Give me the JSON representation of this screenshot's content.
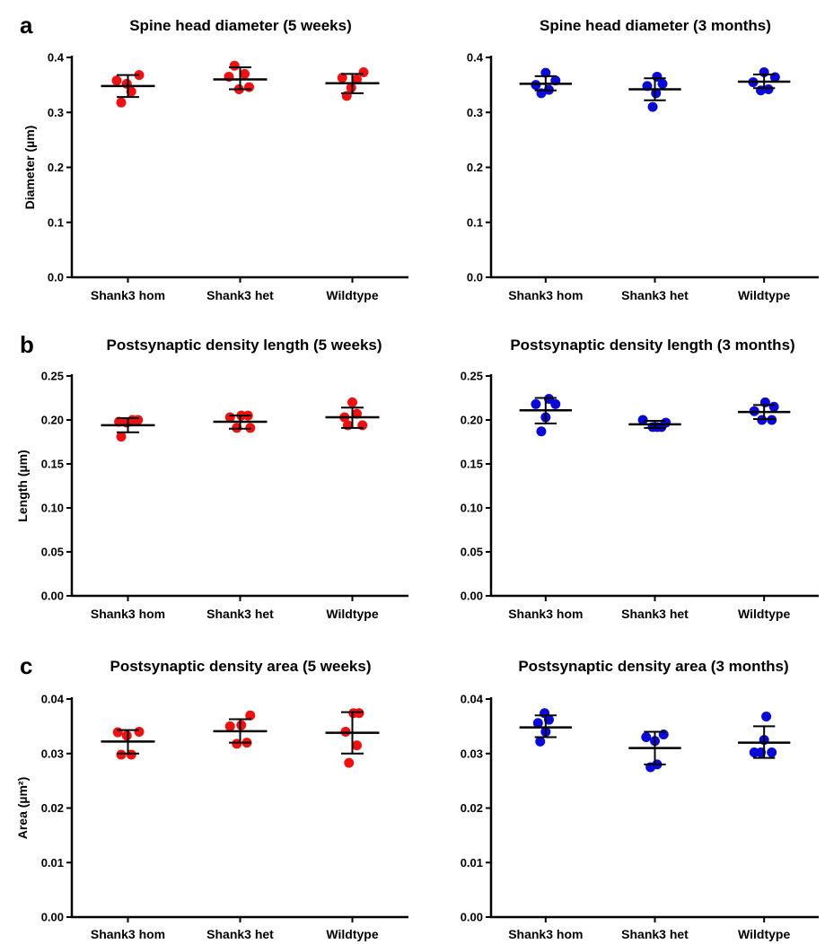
{
  "chart_data": [
    {
      "type": "scatter",
      "panel": "a",
      "title": "Spine head diameter (5 weeks)",
      "ylabel": "Diameter (µm)",
      "ylim": [
        0,
        0.4
      ],
      "yticks": [
        0.0,
        0.1,
        0.2,
        0.3,
        0.4
      ],
      "yticklabels": [
        "0.0",
        "0.1",
        "0.2",
        "0.3",
        "0.4"
      ],
      "categories": [
        "Shank3 hom",
        "Shank3 het",
        "Wildtype"
      ],
      "color": "#ee1111",
      "groups": [
        {
          "points": [
            {
              "x": -0.2,
              "y": 0.358
            },
            {
              "x": -0.12,
              "y": 0.318
            },
            {
              "x": -0.02,
              "y": 0.352
            },
            {
              "x": 0.06,
              "y": 0.338
            },
            {
              "x": 0.2,
              "y": 0.368
            }
          ],
          "mean": 0.348,
          "err": [
            0.328,
            0.368
          ]
        },
        {
          "points": [
            {
              "x": -0.2,
              "y": 0.365
            },
            {
              "x": -0.1,
              "y": 0.385
            },
            {
              "x": -0.02,
              "y": 0.342
            },
            {
              "x": 0.08,
              "y": 0.37
            },
            {
              "x": 0.16,
              "y": 0.346
            }
          ],
          "mean": 0.36,
          "err": [
            0.342,
            0.382
          ]
        },
        {
          "points": [
            {
              "x": -0.18,
              "y": 0.363
            },
            {
              "x": -0.1,
              "y": 0.33
            },
            {
              "x": -0.02,
              "y": 0.345
            },
            {
              "x": 0.08,
              "y": 0.36
            },
            {
              "x": 0.2,
              "y": 0.373
            }
          ],
          "mean": 0.353,
          "err": [
            0.335,
            0.37
          ]
        }
      ]
    },
    {
      "type": "scatter",
      "panel": "",
      "title": "Spine head diameter (3 months)",
      "ylabel": "",
      "ylim": [
        0,
        0.4
      ],
      "yticks": [
        0.0,
        0.1,
        0.2,
        0.3,
        0.4
      ],
      "yticklabels": [
        "0.0",
        "0.1",
        "0.2",
        "0.3",
        "0.4"
      ],
      "categories": [
        "Shank3 hom",
        "Shank3 het",
        "Wildtype"
      ],
      "color": "#0a0ad6",
      "groups": [
        {
          "points": [
            {
              "x": -0.18,
              "y": 0.35
            },
            {
              "x": -0.08,
              "y": 0.335
            },
            {
              "x": 0.0,
              "y": 0.372
            },
            {
              "x": 0.06,
              "y": 0.341
            },
            {
              "x": 0.18,
              "y": 0.358
            }
          ],
          "mean": 0.352,
          "err": [
            0.34,
            0.366
          ]
        },
        {
          "points": [
            {
              "x": -0.14,
              "y": 0.348
            },
            {
              "x": -0.04,
              "y": 0.31
            },
            {
              "x": 0.02,
              "y": 0.335
            },
            {
              "x": 0.04,
              "y": 0.365
            },
            {
              "x": 0.14,
              "y": 0.352
            }
          ],
          "mean": 0.342,
          "err": [
            0.322,
            0.362
          ]
        },
        {
          "points": [
            {
              "x": -0.2,
              "y": 0.355
            },
            {
              "x": -0.06,
              "y": 0.34
            },
            {
              "x": 0.0,
              "y": 0.373
            },
            {
              "x": 0.08,
              "y": 0.342
            },
            {
              "x": 0.2,
              "y": 0.364
            }
          ],
          "mean": 0.356,
          "err": [
            0.344,
            0.369
          ]
        }
      ]
    },
    {
      "type": "scatter",
      "panel": "b",
      "title": "Postsynaptic density length (5 weeks)",
      "ylabel": "Length (µm)",
      "ylim": [
        0,
        0.25
      ],
      "yticks": [
        0.0,
        0.05,
        0.1,
        0.15,
        0.2,
        0.25
      ],
      "yticklabels": [
        "0.00",
        "0.05",
        "0.10",
        "0.15",
        "0.20",
        "0.25"
      ],
      "categories": [
        "Shank3 hom",
        "Shank3 het",
        "Wildtype"
      ],
      "color": "#ee1111",
      "groups": [
        {
          "points": [
            {
              "x": -0.16,
              "y": 0.198
            },
            {
              "x": -0.12,
              "y": 0.181
            },
            {
              "x": -0.02,
              "y": 0.197
            },
            {
              "x": 0.08,
              "y": 0.2
            },
            {
              "x": 0.18,
              "y": 0.2
            }
          ],
          "mean": 0.194,
          "err": [
            0.186,
            0.202
          ]
        },
        {
          "points": [
            {
              "x": -0.18,
              "y": 0.203
            },
            {
              "x": -0.06,
              "y": 0.191
            },
            {
              "x": 0.02,
              "y": 0.205
            },
            {
              "x": 0.14,
              "y": 0.205
            },
            {
              "x": 0.18,
              "y": 0.191
            }
          ],
          "mean": 0.198,
          "err": [
            0.19,
            0.205
          ]
        },
        {
          "points": [
            {
              "x": -0.14,
              "y": 0.203
            },
            {
              "x": -0.08,
              "y": 0.194
            },
            {
              "x": 0.0,
              "y": 0.22
            },
            {
              "x": 0.08,
              "y": 0.207
            },
            {
              "x": 0.18,
              "y": 0.194
            }
          ],
          "mean": 0.203,
          "err": [
            0.191,
            0.214
          ]
        }
      ]
    },
    {
      "type": "scatter",
      "panel": "",
      "title": "Postsynaptic density length (3 months)",
      "ylabel": "",
      "ylim": [
        0,
        0.25
      ],
      "yticks": [
        0.0,
        0.05,
        0.1,
        0.15,
        0.2,
        0.25
      ],
      "yticklabels": [
        "0.00",
        "0.05",
        "0.10",
        "0.15",
        "0.20",
        "0.25"
      ],
      "categories": [
        "Shank3 hom",
        "Shank3 het",
        "Wildtype"
      ],
      "color": "#0a0ad6",
      "groups": [
        {
          "points": [
            {
              "x": -0.18,
              "y": 0.218
            },
            {
              "x": -0.08,
              "y": 0.187
            },
            {
              "x": 0.0,
              "y": 0.203
            },
            {
              "x": 0.06,
              "y": 0.224
            },
            {
              "x": 0.18,
              "y": 0.218
            }
          ],
          "mean": 0.211,
          "err": [
            0.196,
            0.225
          ]
        },
        {
          "points": [
            {
              "x": -0.22,
              "y": 0.2
            },
            {
              "x": -0.04,
              "y": 0.192
            },
            {
              "x": 0.04,
              "y": 0.192
            },
            {
              "x": 0.12,
              "y": 0.192
            },
            {
              "x": 0.2,
              "y": 0.197
            }
          ],
          "mean": 0.195,
          "err": [
            0.191,
            0.199
          ]
        },
        {
          "points": [
            {
              "x": -0.18,
              "y": 0.21
            },
            {
              "x": -0.04,
              "y": 0.2
            },
            {
              "x": 0.02,
              "y": 0.22
            },
            {
              "x": 0.14,
              "y": 0.2
            },
            {
              "x": 0.18,
              "y": 0.215
            }
          ],
          "mean": 0.209,
          "err": [
            0.201,
            0.217
          ]
        }
      ]
    },
    {
      "type": "scatter",
      "panel": "c",
      "title": "Postsynaptic density area (5 weeks)",
      "ylabel": "Area (µm²)",
      "ylim": [
        0,
        0.04
      ],
      "yticks": [
        0.0,
        0.01,
        0.02,
        0.03,
        0.04
      ],
      "yticklabels": [
        "0.00",
        "0.01",
        "0.02",
        "0.03",
        "0.04"
      ],
      "categories": [
        "Shank3 hom",
        "Shank3 het",
        "Wildtype"
      ],
      "color": "#ee1111",
      "groups": [
        {
          "points": [
            {
              "x": -0.18,
              "y": 0.0339
            },
            {
              "x": -0.12,
              "y": 0.0298
            },
            {
              "x": -0.02,
              "y": 0.0333
            },
            {
              "x": 0.06,
              "y": 0.0298
            },
            {
              "x": 0.2,
              "y": 0.034
            }
          ],
          "mean": 0.0322,
          "err": [
            0.03,
            0.0343
          ]
        },
        {
          "points": [
            {
              "x": -0.18,
              "y": 0.035
            },
            {
              "x": -0.06,
              "y": 0.0318
            },
            {
              "x": 0.02,
              "y": 0.0352
            },
            {
              "x": 0.12,
              "y": 0.032
            },
            {
              "x": 0.18,
              "y": 0.037
            }
          ],
          "mean": 0.0341,
          "err": [
            0.032,
            0.0363
          ]
        },
        {
          "points": [
            {
              "x": -0.12,
              "y": 0.034
            },
            {
              "x": -0.06,
              "y": 0.0283
            },
            {
              "x": 0.02,
              "y": 0.0374
            },
            {
              "x": 0.12,
              "y": 0.0374
            },
            {
              "x": 0.08,
              "y": 0.0315
            }
          ],
          "mean": 0.0338,
          "err": [
            0.03,
            0.0376
          ]
        }
      ]
    },
    {
      "type": "scatter",
      "panel": "",
      "title": "Postsynaptic density area (3 months)",
      "ylabel": "",
      "ylim": [
        0,
        0.04
      ],
      "yticks": [
        0.0,
        0.01,
        0.02,
        0.03,
        0.04
      ],
      "yticklabels": [
        "0.00",
        "0.01",
        "0.02",
        "0.03",
        "0.04"
      ],
      "categories": [
        "Shank3 hom",
        "Shank3 het",
        "Wildtype"
      ],
      "color": "#0a0ad6",
      "groups": [
        {
          "points": [
            {
              "x": -0.14,
              "y": 0.0356
            },
            {
              "x": -0.1,
              "y": 0.0322
            },
            {
              "x": -0.02,
              "y": 0.0374
            },
            {
              "x": 0.0,
              "y": 0.034
            },
            {
              "x": 0.06,
              "y": 0.0362
            }
          ],
          "mean": 0.0348,
          "err": [
            0.033,
            0.037
          ]
        },
        {
          "points": [
            {
              "x": -0.16,
              "y": 0.033
            },
            {
              "x": -0.08,
              "y": 0.0275
            },
            {
              "x": 0.0,
              "y": 0.0323
            },
            {
              "x": 0.04,
              "y": 0.028
            },
            {
              "x": 0.16,
              "y": 0.0335
            }
          ],
          "mean": 0.031,
          "err": [
            0.028,
            0.034
          ]
        },
        {
          "points": [
            {
              "x": -0.18,
              "y": 0.0302
            },
            {
              "x": -0.06,
              "y": 0.0302
            },
            {
              "x": 0.0,
              "y": 0.0325
            },
            {
              "x": 0.04,
              "y": 0.0368
            },
            {
              "x": 0.14,
              "y": 0.0302
            }
          ],
          "mean": 0.032,
          "err": [
            0.0292,
            0.035
          ]
        }
      ]
    }
  ]
}
